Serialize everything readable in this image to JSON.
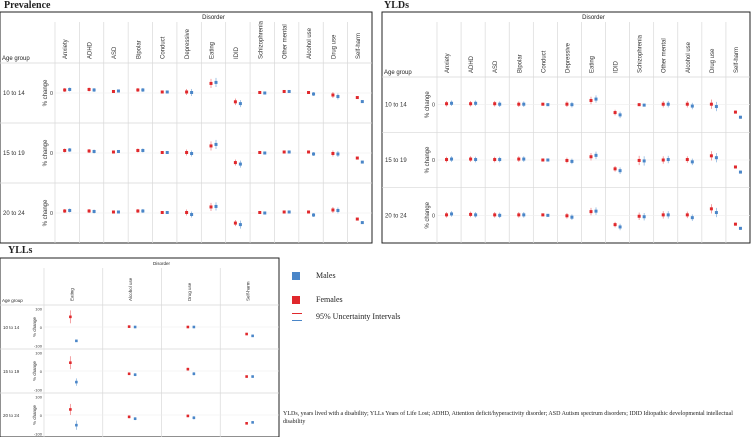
{
  "colors": {
    "male": "#4a86c8",
    "female": "#e0282c",
    "male_ci": "#8fb7e0",
    "female_ci": "#f08a8c",
    "grid": "#d8d8d8",
    "frame": "#222222"
  },
  "labels": {
    "disorder": "Disorder",
    "age_group": "Age group",
    "y_axis": "% change"
  },
  "legend": {
    "males": "Males",
    "females": "Females",
    "ui": "95% Uncertainty Intervals"
  },
  "footnote": "YLDs, years lived with a disability; YLLs Years of Life Lost; ADHD, Attention deficit/hyperactivity disorder; ASD Autism spectrum disorders; IDID Idiopathic developmental intellectual disability",
  "chart_data": [
    {
      "type": "scatter",
      "title": "Prevalence",
      "xlabel": "Disorder",
      "ylabel": "% change",
      "categories": [
        "Anxiety",
        "ADHD",
        "ASD",
        "Bipolar",
        "Conduct",
        "Depressive",
        "Eating",
        "IDID",
        "Schizophrenia",
        "Other mental",
        "Alcohol use",
        "Drug use",
        "Self-harm"
      ],
      "age_groups": [
        "10 to 14",
        "15 to 19",
        "20 to 24"
      ],
      "ylim": [
        -100,
        100
      ],
      "yticks": [
        0
      ],
      "series": [
        {
          "name": "Females",
          "age_group": "10 to 14",
          "values": [
            12,
            14,
            6,
            12,
            4,
            4,
            38,
            -35,
            2,
            6,
            2,
            -8,
            -18
          ],
          "ci_low": [
            4,
            6,
            2,
            4,
            0,
            -8,
            20,
            -48,
            -2,
            2,
            -4,
            -20,
            -22
          ],
          "ci_high": [
            20,
            22,
            10,
            20,
            8,
            16,
            56,
            -22,
            6,
            10,
            8,
            4,
            -14
          ]
        },
        {
          "name": "Males",
          "age_group": "10 to 14",
          "values": [
            14,
            12,
            8,
            12,
            4,
            2,
            42,
            -42,
            0,
            6,
            -4,
            -14,
            -34
          ],
          "ci_low": [
            6,
            4,
            4,
            4,
            0,
            -12,
            24,
            -56,
            -4,
            2,
            -12,
            -26,
            -38
          ],
          "ci_high": [
            22,
            20,
            12,
            20,
            8,
            16,
            60,
            -28,
            4,
            10,
            4,
            -2,
            -30
          ]
        },
        {
          "name": "Females",
          "age_group": "15 to 19",
          "values": [
            10,
            8,
            4,
            10,
            2,
            2,
            28,
            -38,
            2,
            4,
            4,
            -2,
            -20
          ],
          "ci_low": [
            2,
            0,
            0,
            2,
            -2,
            -10,
            10,
            -50,
            -2,
            0,
            -2,
            -14,
            -24
          ],
          "ci_high": [
            18,
            16,
            8,
            18,
            6,
            14,
            46,
            -26,
            6,
            8,
            10,
            10,
            -16
          ]
        },
        {
          "name": "Males",
          "age_group": "15 to 19",
          "values": [
            12,
            6,
            6,
            10,
            2,
            -2,
            34,
            -44,
            0,
            4,
            -4,
            -4,
            -36
          ],
          "ci_low": [
            4,
            -2,
            2,
            2,
            -2,
            -14,
            16,
            -58,
            -4,
            0,
            -12,
            -16,
            -40
          ],
          "ci_high": [
            20,
            14,
            10,
            18,
            6,
            10,
            52,
            -30,
            4,
            8,
            4,
            8,
            -32
          ]
        },
        {
          "name": "Females",
          "age_group": "20 to 24",
          "values": [
            8,
            8,
            4,
            8,
            2,
            2,
            24,
            -40,
            2,
            4,
            4,
            12,
            -24
          ],
          "ci_low": [
            0,
            0,
            0,
            0,
            -2,
            -10,
            8,
            -52,
            -2,
            0,
            -2,
            0,
            -28
          ],
          "ci_high": [
            16,
            16,
            8,
            16,
            6,
            14,
            40,
            -28,
            6,
            8,
            10,
            24,
            -20
          ]
        },
        {
          "name": "Males",
          "age_group": "20 to 24",
          "values": [
            10,
            6,
            4,
            8,
            2,
            -6,
            26,
            -46,
            0,
            4,
            -8,
            10,
            -38
          ],
          "ci_low": [
            2,
            -2,
            0,
            0,
            -2,
            -18,
            10,
            -62,
            -4,
            0,
            -16,
            -2,
            -42
          ],
          "ci_high": [
            18,
            14,
            8,
            16,
            6,
            6,
            42,
            -30,
            4,
            8,
            0,
            22,
            -34
          ]
        }
      ]
    },
    {
      "type": "scatter",
      "title": "YLDs",
      "xlabel": "Disorder",
      "ylabel": "% change",
      "categories": [
        "Anxiety",
        "ADHD",
        "ASD",
        "Bipolar",
        "Conduct",
        "Depressive",
        "Eating",
        "IDID",
        "Schizophrenia",
        "Other mental",
        "Alcohol use",
        "Drug use",
        "Self-harm"
      ],
      "age_groups": [
        "10 to 14",
        "15 to 19",
        "20 to 24"
      ],
      "ylim": [
        -100,
        100
      ],
      "yticks": [
        0
      ],
      "series": [
        {
          "name": "Females",
          "age_group": "10 to 14",
          "values": [
            4,
            4,
            4,
            2,
            2,
            2,
            18,
            -34,
            0,
            2,
            2,
            2,
            -32
          ],
          "ci_low": [
            -8,
            -8,
            -8,
            -10,
            -4,
            -10,
            2,
            -46,
            -6,
            -12,
            -12,
            -18,
            -38
          ],
          "ci_high": [
            16,
            16,
            16,
            14,
            8,
            14,
            34,
            -22,
            6,
            16,
            16,
            22,
            -26
          ]
        },
        {
          "name": "Males",
          "age_group": "10 to 14",
          "values": [
            6,
            6,
            2,
            2,
            0,
            0,
            24,
            -44,
            -2,
            2,
            -6,
            -8,
            -54
          ],
          "ci_low": [
            -6,
            -6,
            -10,
            -10,
            -6,
            -12,
            8,
            -58,
            -8,
            -12,
            -20,
            -28,
            -60
          ],
          "ci_high": [
            18,
            18,
            14,
            14,
            6,
            12,
            40,
            -30,
            4,
            16,
            8,
            12,
            -48
          ]
        },
        {
          "name": "Females",
          "age_group": "15 to 19",
          "values": [
            2,
            4,
            2,
            4,
            0,
            -2,
            14,
            -38,
            -2,
            0,
            2,
            18,
            -30
          ],
          "ci_low": [
            -10,
            -8,
            -10,
            -8,
            -6,
            -14,
            -2,
            -50,
            -22,
            -16,
            -12,
            -2,
            -36
          ],
          "ci_high": [
            14,
            16,
            14,
            16,
            6,
            10,
            30,
            -26,
            18,
            16,
            16,
            38,
            -24
          ]
        },
        {
          "name": "Males",
          "age_group": "15 to 19",
          "values": [
            4,
            2,
            2,
            4,
            0,
            -6,
            20,
            -46,
            -4,
            2,
            -8,
            10,
            -52
          ],
          "ci_low": [
            -8,
            -10,
            -10,
            -8,
            -6,
            -18,
            4,
            -60,
            -24,
            -14,
            -22,
            -10,
            -58
          ],
          "ci_high": [
            16,
            14,
            14,
            16,
            6,
            6,
            36,
            -32,
            16,
            18,
            6,
            30,
            -46
          ]
        },
        {
          "name": "Females",
          "age_group": "20 to 24",
          "values": [
            2,
            4,
            2,
            2,
            2,
            -2,
            16,
            -40,
            -4,
            2,
            2,
            28,
            -38
          ],
          "ci_low": [
            -10,
            -8,
            -10,
            -10,
            -4,
            -14,
            0,
            -52,
            -20,
            -14,
            -12,
            8,
            -44
          ],
          "ci_high": [
            14,
            16,
            14,
            14,
            8,
            10,
            32,
            -28,
            12,
            18,
            16,
            48,
            -32
          ]
        },
        {
          "name": "Males",
          "age_group": "20 to 24",
          "values": [
            6,
            2,
            0,
            2,
            0,
            -8,
            18,
            -50,
            -6,
            2,
            -10,
            12,
            -56
          ],
          "ci_low": [
            -6,
            -10,
            -12,
            -10,
            -6,
            -20,
            2,
            -64,
            -22,
            -14,
            -24,
            -8,
            -62
          ],
          "ci_high": [
            18,
            14,
            12,
            14,
            6,
            4,
            34,
            -36,
            10,
            18,
            4,
            32,
            -50
          ]
        }
      ]
    },
    {
      "type": "scatter",
      "title": "YLLs",
      "xlabel": "Disorder",
      "ylabel": "% change",
      "categories": [
        "Eating",
        "Alcohol use",
        "Drug use",
        "Self-harm"
      ],
      "age_groups": [
        "10 to 14",
        "15 to 19",
        "20 to 24"
      ],
      "ylim": [
        -100,
        100
      ],
      "yticks": [
        100,
        0,
        -100
      ],
      "series": [
        {
          "name": "Females",
          "age_group": "10 to 14",
          "values": [
            55,
            2,
            0,
            -38
          ],
          "ci_low": [
            20,
            -4,
            -6,
            -44
          ],
          "ci_high": [
            90,
            8,
            6,
            -32
          ]
        },
        {
          "name": "Males",
          "age_group": "10 to 14",
          "values": [
            -75,
            0,
            0,
            -48
          ],
          "ci_low": [
            -80,
            -6,
            -6,
            -54
          ],
          "ci_high": [
            -70,
            6,
            6,
            -42
          ]
        },
        {
          "name": "Females",
          "age_group": "15 to 19",
          "values": [
            45,
            -15,
            10,
            -30
          ],
          "ci_low": [
            10,
            -22,
            2,
            -36
          ],
          "ci_high": [
            80,
            -8,
            18,
            -24
          ]
        },
        {
          "name": "Males",
          "age_group": "15 to 19",
          "values": [
            -60,
            -20,
            -15,
            -30
          ],
          "ci_low": [
            -80,
            -28,
            -24,
            -36
          ],
          "ci_high": [
            -40,
            -12,
            -6,
            -24
          ]
        },
        {
          "name": "Females",
          "age_group": "20 to 24",
          "values": [
            30,
            -10,
            -5,
            -45
          ],
          "ci_low": [
            0,
            -18,
            -12,
            -50
          ],
          "ci_high": [
            60,
            -2,
            2,
            -40
          ]
        },
        {
          "name": "Males",
          "age_group": "20 to 24",
          "values": [
            -55,
            -20,
            -15,
            -40
          ],
          "ci_low": [
            -80,
            -28,
            -24,
            -46
          ],
          "ci_high": [
            -30,
            -12,
            -6,
            -34
          ]
        }
      ]
    }
  ]
}
